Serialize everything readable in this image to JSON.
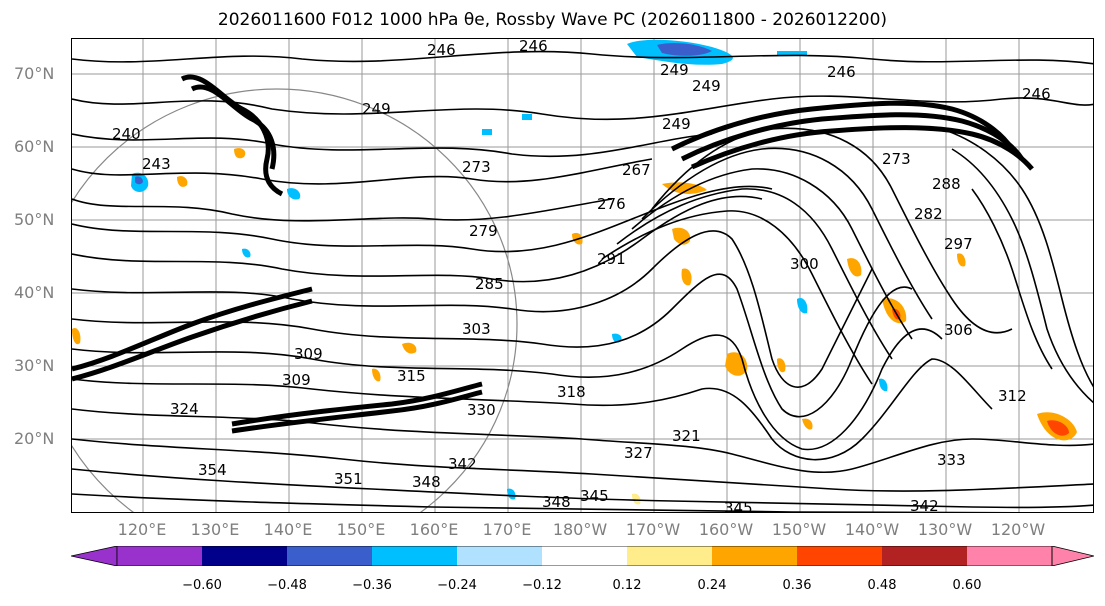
{
  "title": "2026011600 F012 1000 hPa θe, Rossby Wave PC (2026011800 - 2026012200)",
  "lat_labels": [
    "70°N",
    "60°N",
    "50°N",
    "40°N",
    "30°N",
    "20°N"
  ],
  "lon_labels": [
    "120°E",
    "130°E",
    "140°E",
    "150°E",
    "160°E",
    "170°E",
    "180°W",
    "170°W",
    "160°W",
    "150°W",
    "140°W",
    "130°W",
    "120°W"
  ],
  "colorbar": {
    "ticks": [
      "−0.60",
      "−0.48",
      "−0.36",
      "−0.24",
      "−0.12",
      "0.12",
      "0.24",
      "0.36",
      "0.48",
      "0.60"
    ],
    "colors": [
      "#9932cc",
      "#00008b",
      "#3a5fcd",
      "#00bfff",
      "#b0e2ff",
      "#ffffff",
      "#ffec8b",
      "#ffa500",
      "#ff4500",
      "#b22222",
      "#ff82ab",
      "#ff82ab"
    ]
  },
  "contour_labels": [
    "246",
    "246",
    "249",
    "249",
    "246",
    "246",
    "240",
    "243",
    "249",
    "249",
    "273",
    "267",
    "276",
    "279",
    "285",
    "291",
    "300",
    "297",
    "303",
    "309",
    "309",
    "315",
    "318",
    "324",
    "330",
    "321",
    "327",
    "333",
    "342",
    "348",
    "345",
    "348",
    "345",
    "342",
    "354",
    "351",
    "312",
    "306",
    "282",
    "288",
    "273"
  ]
}
